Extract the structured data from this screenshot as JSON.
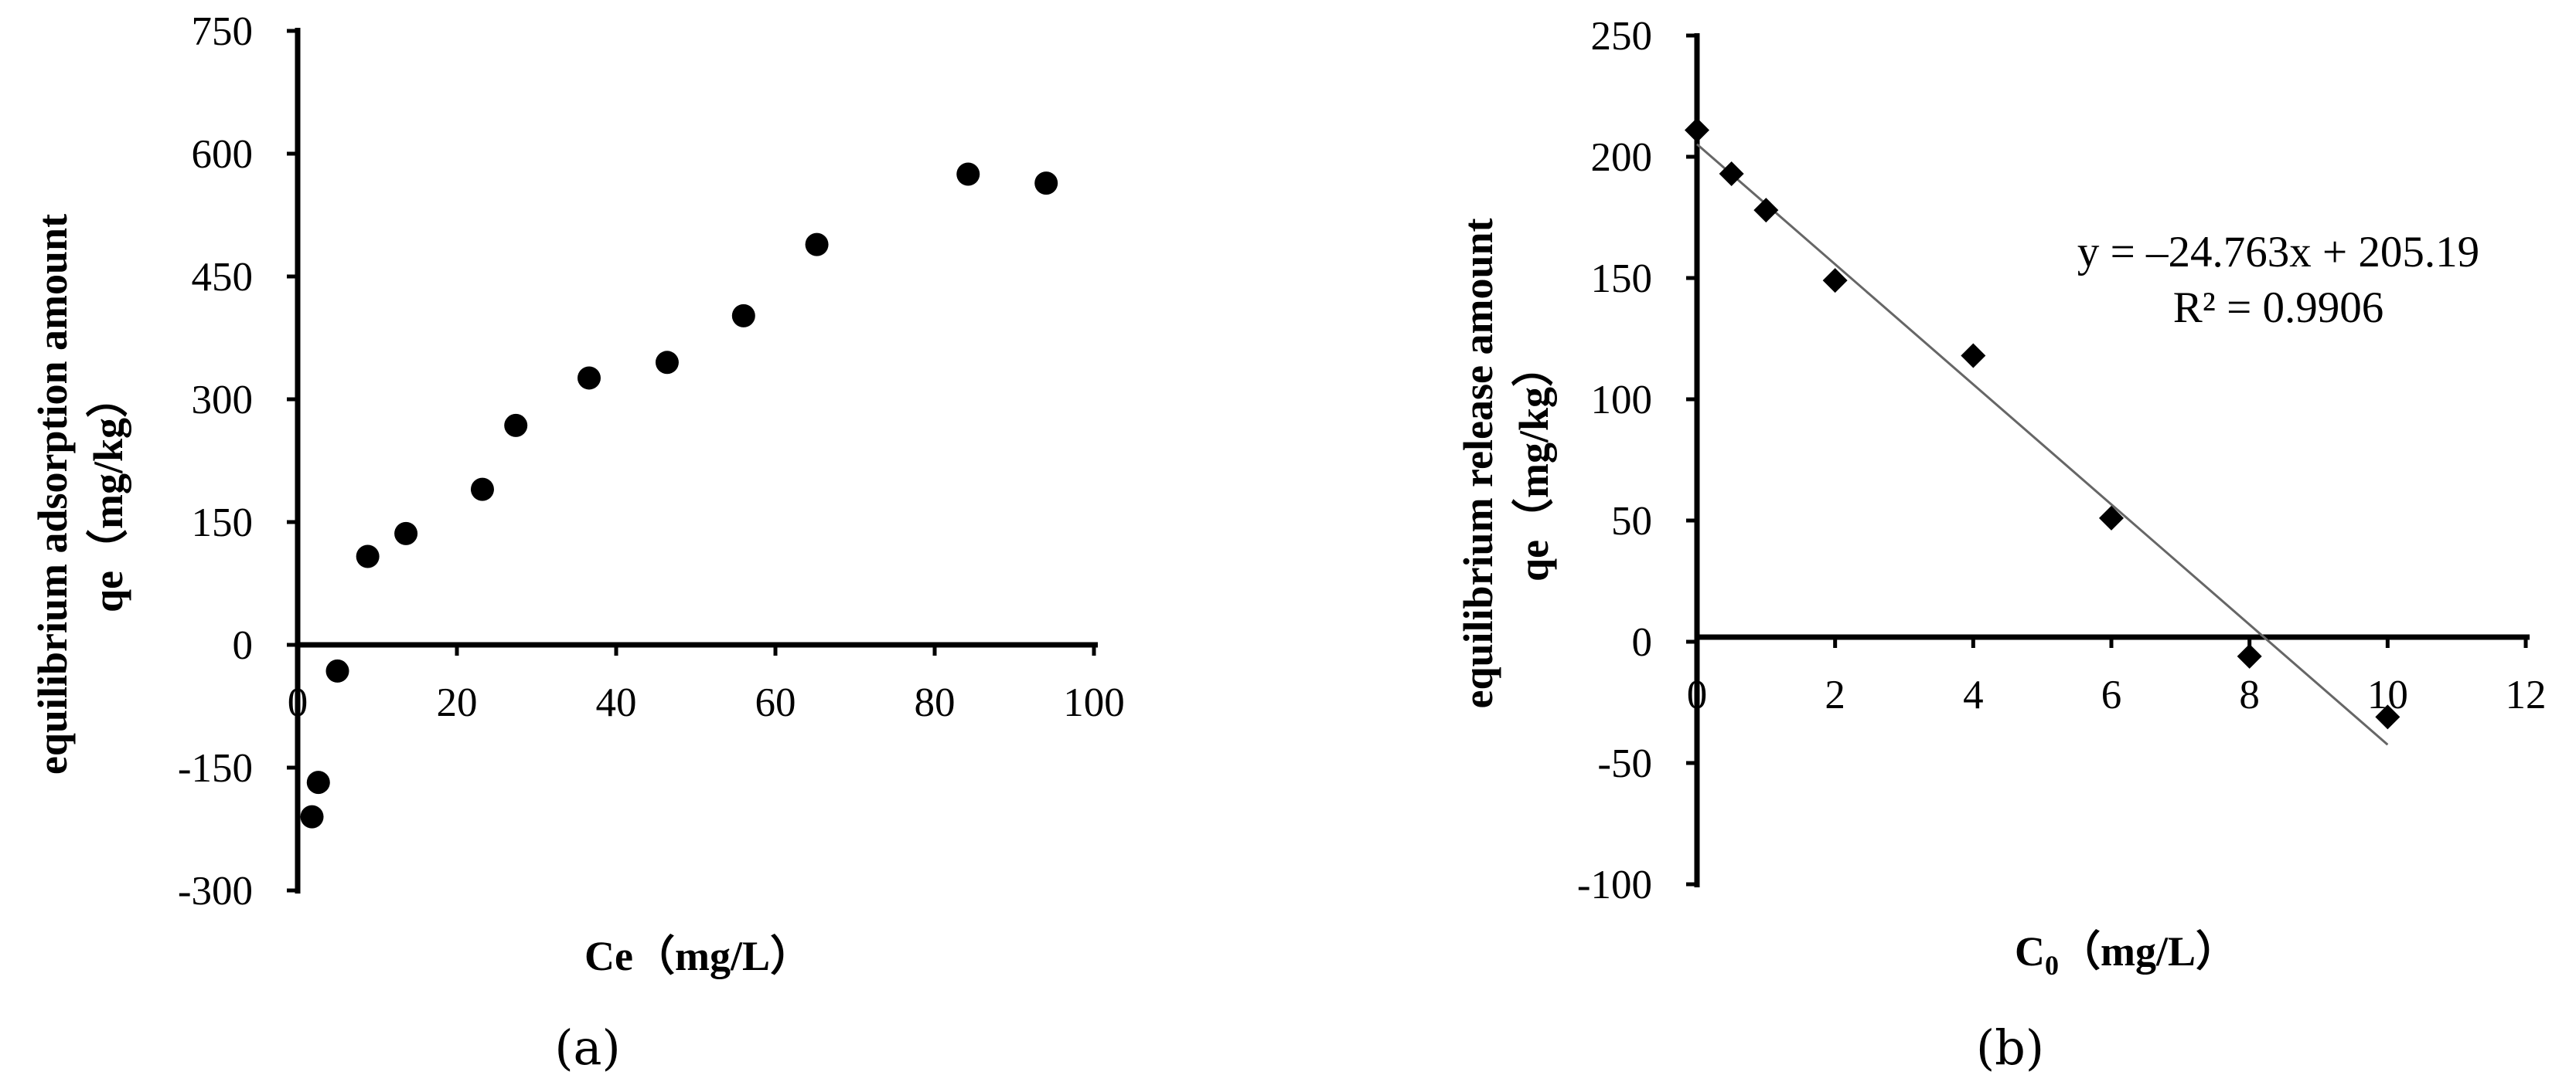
{
  "chart_data": [
    {
      "type": "scatter",
      "panel_label": "(a)",
      "xlabel": "Ce（mg/L）",
      "ylabel_line1": "equilibrium adsorption amount",
      "ylabel_line2": "qe（mg/kg）",
      "xlim": [
        0,
        100
      ],
      "ylim": [
        -300,
        750
      ],
      "xticks": [
        0,
        20,
        40,
        60,
        80,
        100
      ],
      "yticks": [
        -300,
        -150,
        0,
        150,
        300,
        450,
        600,
        750
      ],
      "marker": "circle",
      "grid": false,
      "series": [
        {
          "points": [
            [
              1.8,
              -210
            ],
            [
              2.6,
              -168
            ],
            [
              5.0,
              -32
            ],
            [
              8.8,
              108
            ],
            [
              13.6,
              136
            ],
            [
              23.2,
              190
            ],
            [
              27.4,
              268
            ],
            [
              36.6,
              326
            ],
            [
              46.4,
              345
            ],
            [
              56.0,
              402
            ],
            [
              65.2,
              489
            ],
            [
              84.2,
              575
            ],
            [
              94.0,
              564
            ]
          ]
        }
      ]
    },
    {
      "type": "scatter",
      "panel_label": "(b)",
      "xlabel_main": "C",
      "xlabel_sub": "0",
      "xlabel_rest": "（mg/L）",
      "ylabel_line1": "equilibrium  release amount",
      "ylabel_line2": "qe（mg/kg）",
      "xlim": [
        0,
        12
      ],
      "ylim": [
        -100,
        250
      ],
      "xticks": [
        0,
        2,
        4,
        6,
        8,
        10,
        12
      ],
      "yticks": [
        -100,
        -50,
        0,
        50,
        100,
        150,
        200,
        250
      ],
      "marker": "diamond",
      "grid": false,
      "series": [
        {
          "points": [
            [
              0,
              211
            ],
            [
              0.5,
              193
            ],
            [
              1,
              178
            ],
            [
              2,
              149
            ],
            [
              4,
              118
            ],
            [
              6,
              51
            ],
            [
              8,
              -6
            ],
            [
              10,
              -31
            ]
          ]
        }
      ],
      "trendline": {
        "slope": -24.763,
        "intercept": 205.19,
        "x_range": [
          0,
          10
        ]
      },
      "equation_label": "y = –24.763x + 205.19",
      "r2_label": "R² = 0.9906"
    }
  ]
}
